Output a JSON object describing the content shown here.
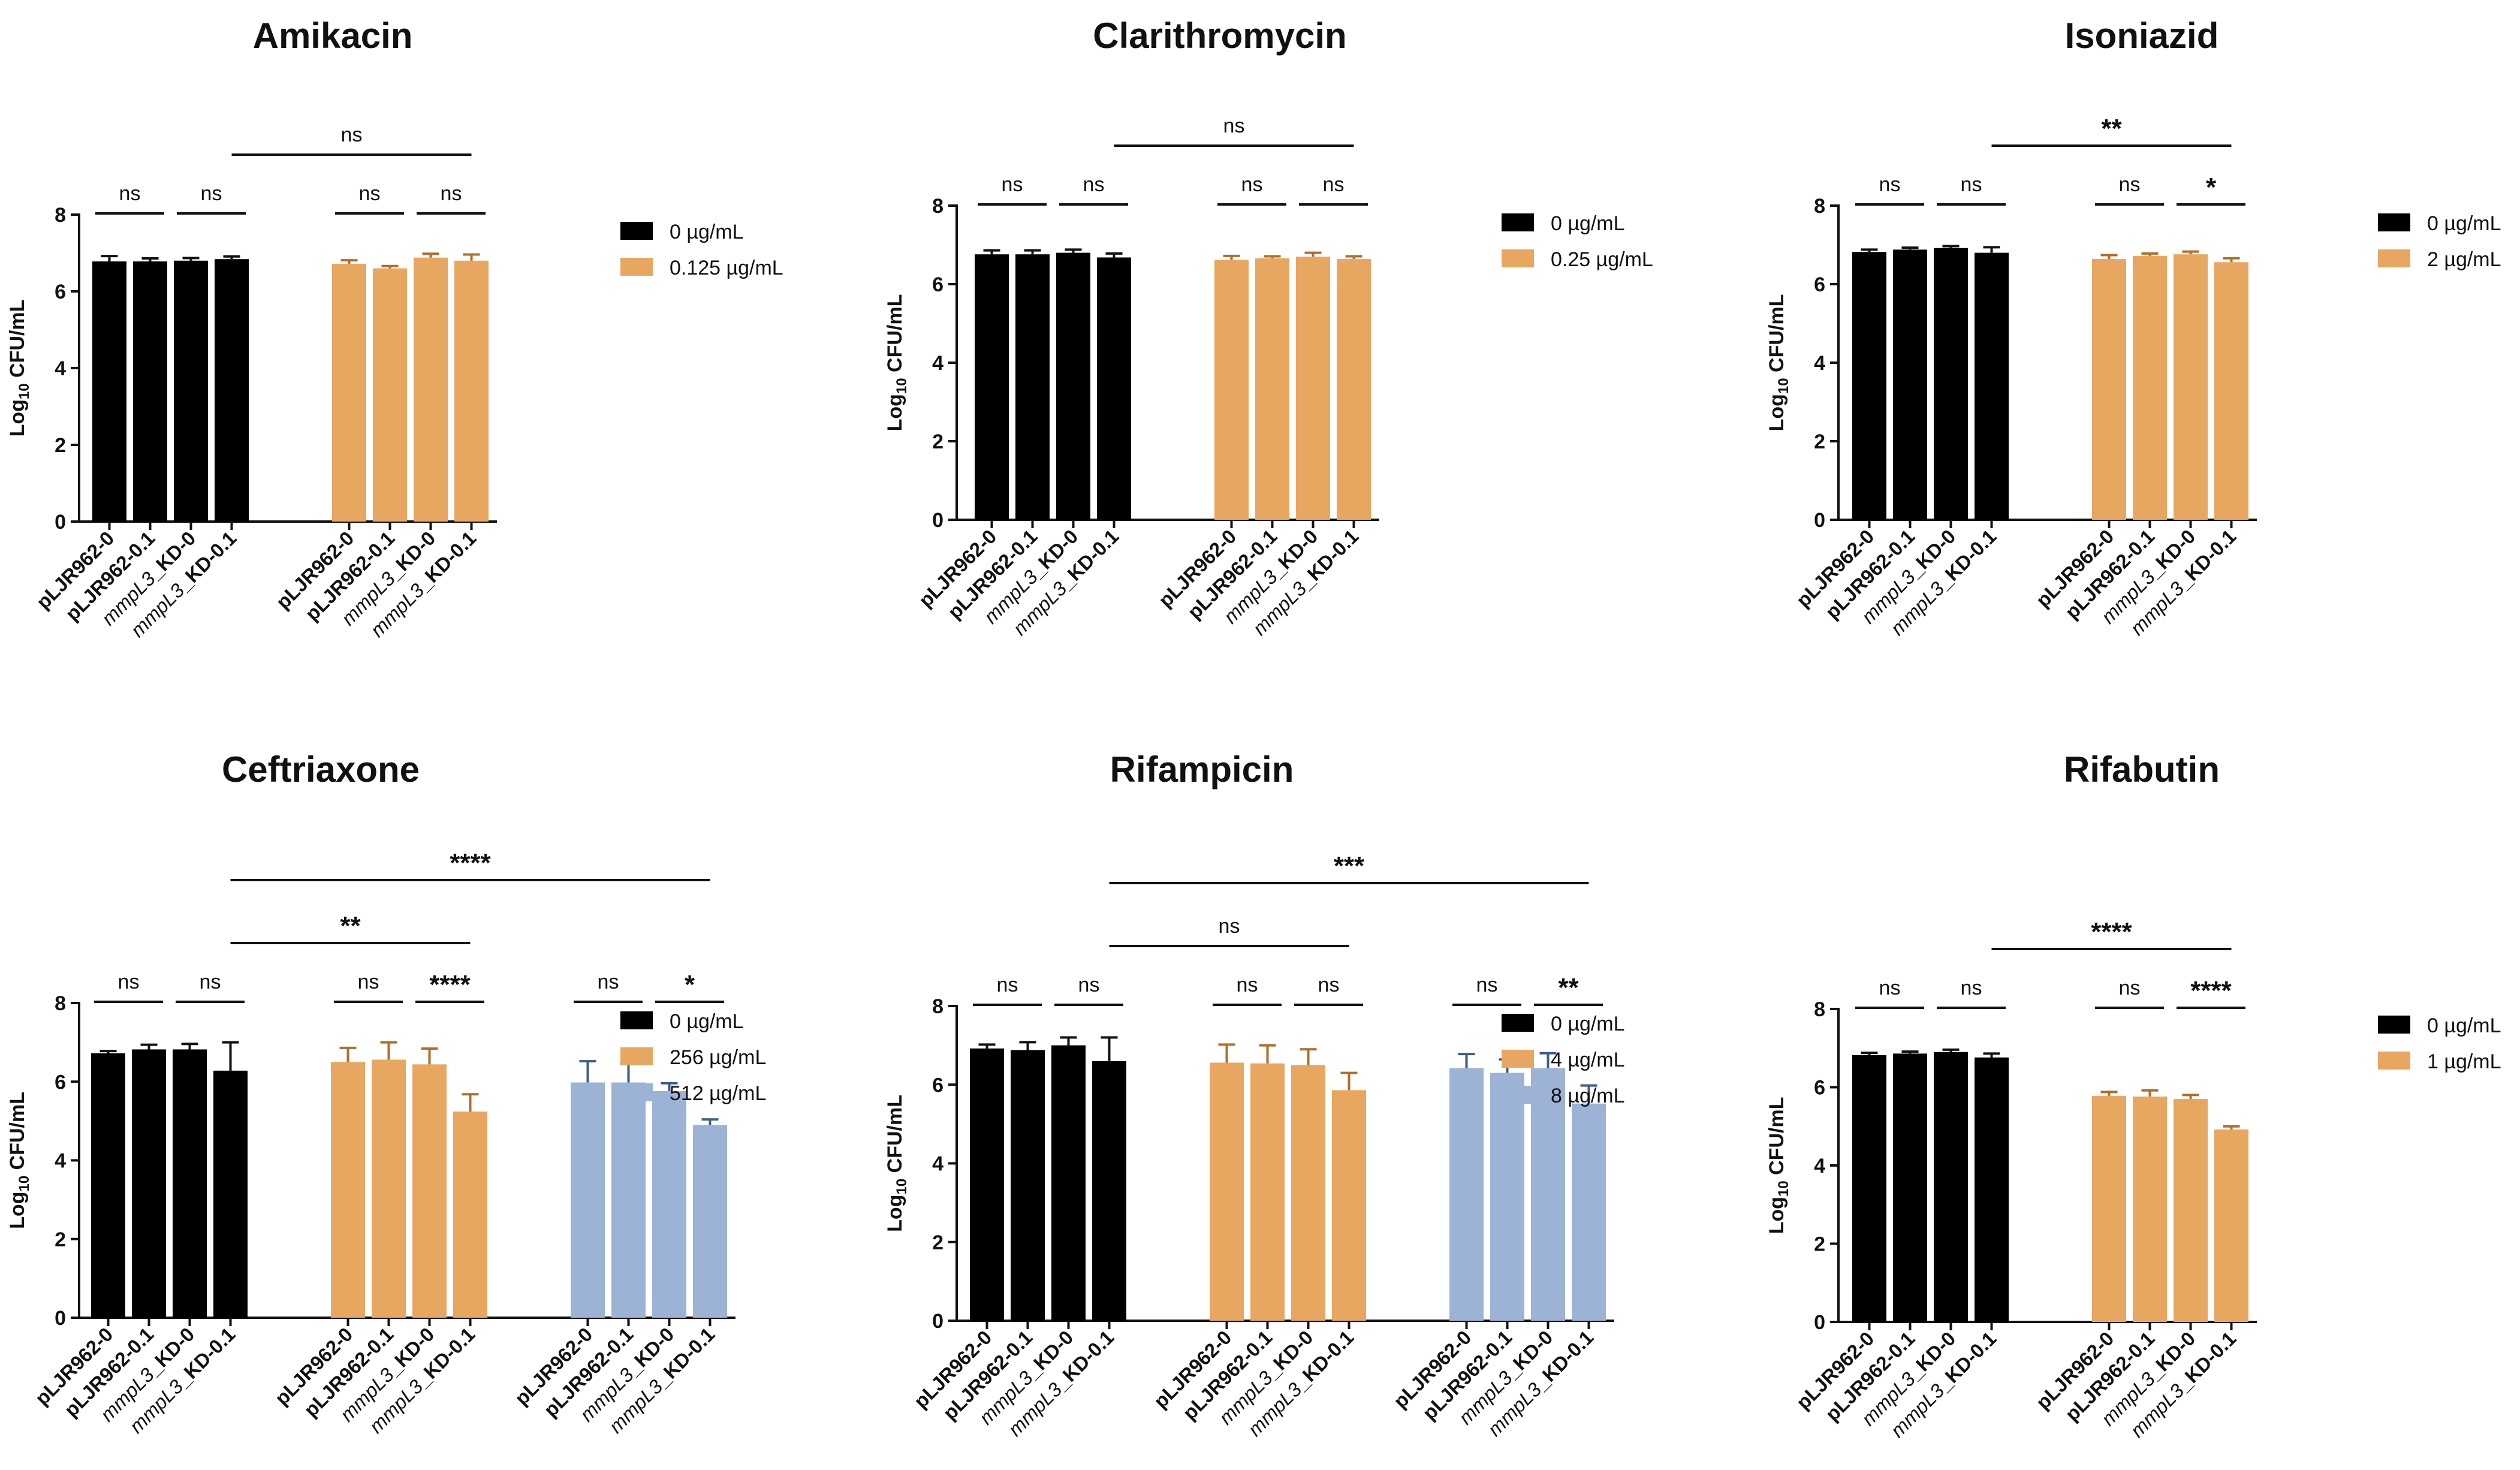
{
  "colors": {
    "black": "#000000",
    "orange": "#E8A760",
    "blue": "#9CB3D5"
  },
  "chart_data": [
    {
      "type": "bar",
      "title": "Amikacin",
      "ylabel_main": "Log",
      "ylabel_sub": "10",
      "ylabel_rest": " CFU/mL",
      "ylim": [
        0,
        8
      ],
      "yticks": [
        0,
        2,
        4,
        6,
        8
      ],
      "categories": [
        "pLJR962-0",
        "pLJR962-0.1",
        "mmpL3_KD-0",
        "mmpL3_KD-0.1"
      ],
      "series": [
        {
          "name": "0 µg/mL",
          "color": "#000000",
          "values": [
            6.78,
            6.78,
            6.8,
            6.84
          ],
          "errors": [
            0.14,
            0.08,
            0.07,
            0.07
          ]
        },
        {
          "name": "0.125 µg/mL",
          "color": "#E8A760",
          "values": [
            6.72,
            6.6,
            6.88,
            6.8
          ],
          "errors": [
            0.09,
            0.06,
            0.1,
            0.16
          ]
        }
      ],
      "annotations": [
        {
          "label": "ns",
          "from": [
            0,
            0
          ],
          "to": [
            0,
            1
          ],
          "level": 0
        },
        {
          "label": "ns",
          "from": [
            0,
            2
          ],
          "to": [
            0,
            3
          ],
          "level": 0
        },
        {
          "label": "ns",
          "from": [
            1,
            0
          ],
          "to": [
            1,
            1
          ],
          "level": 0
        },
        {
          "label": "ns",
          "from": [
            1,
            2
          ],
          "to": [
            1,
            3
          ],
          "level": 0
        },
        {
          "label": "ns",
          "from": [
            0,
            3
          ],
          "to": [
            1,
            3
          ],
          "level": 1
        }
      ]
    },
    {
      "type": "bar",
      "title": "Clarithromycin",
      "ylabel_main": "Log",
      "ylabel_sub": "10",
      "ylabel_rest": " CFU/mL",
      "ylim": [
        0,
        8
      ],
      "yticks": [
        0,
        2,
        4,
        6,
        8
      ],
      "categories": [
        "pLJR962-0",
        "pLJR962-0.1",
        "mmpL3_KD-0",
        "mmpL3_KD-0.1"
      ],
      "series": [
        {
          "name": "0 µg/mL",
          "color": "#000000",
          "values": [
            6.76,
            6.76,
            6.8,
            6.68
          ],
          "errors": [
            0.1,
            0.1,
            0.08,
            0.1
          ]
        },
        {
          "name": "0.25 µg/mL",
          "color": "#E8A760",
          "values": [
            6.62,
            6.66,
            6.7,
            6.64
          ],
          "errors": [
            0.1,
            0.05,
            0.1,
            0.07
          ]
        }
      ],
      "annotations": [
        {
          "label": "ns",
          "from": [
            0,
            0
          ],
          "to": [
            0,
            1
          ],
          "level": 0
        },
        {
          "label": "ns",
          "from": [
            0,
            2
          ],
          "to": [
            0,
            3
          ],
          "level": 0
        },
        {
          "label": "ns",
          "from": [
            1,
            0
          ],
          "to": [
            1,
            1
          ],
          "level": 0
        },
        {
          "label": "ns",
          "from": [
            1,
            2
          ],
          "to": [
            1,
            3
          ],
          "level": 0
        },
        {
          "label": "ns",
          "from": [
            0,
            3
          ],
          "to": [
            1,
            3
          ],
          "level": 1
        }
      ]
    },
    {
      "type": "bar",
      "title": "Isoniazid",
      "ylabel_main": "Log",
      "ylabel_sub": "10",
      "ylabel_rest": " CFU/mL",
      "ylim": [
        0,
        8
      ],
      "yticks": [
        0,
        2,
        4,
        6,
        8
      ],
      "categories": [
        "pLJR962-0",
        "pLJR962-0.1",
        "mmpL3_KD-0",
        "mmpL3_KD-0.1"
      ],
      "series": [
        {
          "name": "0 µg/mL",
          "color": "#000000",
          "values": [
            6.82,
            6.88,
            6.92,
            6.8
          ],
          "errors": [
            0.06,
            0.05,
            0.05,
            0.14
          ]
        },
        {
          "name": "2 µg/mL",
          "color": "#E8A760",
          "values": [
            6.64,
            6.72,
            6.76,
            6.56
          ],
          "errors": [
            0.1,
            0.06,
            0.07,
            0.1
          ]
        }
      ],
      "annotations": [
        {
          "label": "ns",
          "from": [
            0,
            0
          ],
          "to": [
            0,
            1
          ],
          "level": 0
        },
        {
          "label": "ns",
          "from": [
            0,
            2
          ],
          "to": [
            0,
            3
          ],
          "level": 0
        },
        {
          "label": "ns",
          "from": [
            1,
            0
          ],
          "to": [
            1,
            1
          ],
          "level": 0
        },
        {
          "label": "*",
          "from": [
            1,
            2
          ],
          "to": [
            1,
            3
          ],
          "level": 0
        },
        {
          "label": "**",
          "from": [
            0,
            3
          ],
          "to": [
            1,
            3
          ],
          "level": 1
        }
      ]
    },
    {
      "type": "bar",
      "title": "Ceftriaxone",
      "ylabel_main": "Log",
      "ylabel_sub": "10",
      "ylabel_rest": " CFU/mL",
      "ylim": [
        0,
        8
      ],
      "yticks": [
        0,
        2,
        4,
        6,
        8
      ],
      "categories": [
        "pLJR962-0",
        "pLJR962-0.1",
        "mmpL3_KD-0",
        "mmpL3_KD-0.1"
      ],
      "series": [
        {
          "name": "0 µg/mL",
          "color": "#000000",
          "values": [
            6.72,
            6.82,
            6.82,
            6.28
          ],
          "errors": [
            0.06,
            0.12,
            0.14,
            0.72
          ]
        },
        {
          "name": "256 µg/mL",
          "color": "#E8A760",
          "values": [
            6.5,
            6.56,
            6.44,
            5.24
          ],
          "errors": [
            0.36,
            0.44,
            0.4,
            0.44
          ]
        },
        {
          "name": "512 µg/mL",
          "color": "#9CB3D5",
          "values": [
            5.98,
            5.98,
            5.76,
            4.9
          ],
          "errors": [
            0.54,
            0.48,
            0.2,
            0.14
          ]
        }
      ],
      "annotations": [
        {
          "label": "ns",
          "from": [
            0,
            0
          ],
          "to": [
            0,
            1
          ],
          "level": 0
        },
        {
          "label": "ns",
          "from": [
            0,
            2
          ],
          "to": [
            0,
            3
          ],
          "level": 0
        },
        {
          "label": "ns",
          "from": [
            1,
            0
          ],
          "to": [
            1,
            1
          ],
          "level": 0
        },
        {
          "label": "****",
          "from": [
            1,
            2
          ],
          "to": [
            1,
            3
          ],
          "level": 0
        },
        {
          "label": "ns",
          "from": [
            2,
            0
          ],
          "to": [
            2,
            1
          ],
          "level": 0
        },
        {
          "label": "*",
          "from": [
            2,
            2
          ],
          "to": [
            2,
            3
          ],
          "level": 0
        },
        {
          "label": "**",
          "from": [
            0,
            3
          ],
          "to": [
            1,
            3
          ],
          "level": 1
        },
        {
          "label": "****",
          "from": [
            0,
            3
          ],
          "to": [
            2,
            3
          ],
          "level": 2
        }
      ]
    },
    {
      "type": "bar",
      "title": "Rifampicin",
      "ylabel_main": "Log",
      "ylabel_sub": "10",
      "ylabel_rest": " CFU/mL",
      "ylim": [
        0,
        8
      ],
      "yticks": [
        0,
        2,
        4,
        6,
        8
      ],
      "categories": [
        "pLJR962-0",
        "pLJR962-0.1",
        "mmpL3_KD-0",
        "mmpL3_KD-0.1"
      ],
      "series": [
        {
          "name": "0 µg/mL",
          "color": "#000000",
          "values": [
            6.92,
            6.88,
            7.0,
            6.6
          ],
          "errors": [
            0.1,
            0.2,
            0.2,
            0.6
          ]
        },
        {
          "name": "4 µg/mL",
          "color": "#E8A760",
          "values": [
            6.56,
            6.54,
            6.5,
            5.86
          ],
          "errors": [
            0.46,
            0.46,
            0.4,
            0.44
          ]
        },
        {
          "name": "8 µg/mL",
          "color": "#9CB3D5",
          "values": [
            6.42,
            6.3,
            6.42,
            5.52
          ],
          "errors": [
            0.36,
            0.34,
            0.38,
            0.46
          ]
        }
      ],
      "annotations": [
        {
          "label": "ns",
          "from": [
            0,
            0
          ],
          "to": [
            0,
            1
          ],
          "level": 0
        },
        {
          "label": "ns",
          "from": [
            0,
            2
          ],
          "to": [
            0,
            3
          ],
          "level": 0
        },
        {
          "label": "ns",
          "from": [
            1,
            0
          ],
          "to": [
            1,
            1
          ],
          "level": 0
        },
        {
          "label": "ns",
          "from": [
            1,
            2
          ],
          "to": [
            1,
            3
          ],
          "level": 0
        },
        {
          "label": "ns",
          "from": [
            2,
            0
          ],
          "to": [
            2,
            1
          ],
          "level": 0
        },
        {
          "label": "**",
          "from": [
            2,
            2
          ],
          "to": [
            2,
            3
          ],
          "level": 0
        },
        {
          "label": "ns",
          "from": [
            0,
            3
          ],
          "to": [
            1,
            3
          ],
          "level": 1
        },
        {
          "label": "***",
          "from": [
            0,
            3
          ],
          "to": [
            2,
            3
          ],
          "level": 2
        }
      ]
    },
    {
      "type": "bar",
      "title": "Rifabutin",
      "ylabel_main": "Log",
      "ylabel_sub": "10",
      "ylabel_rest": " CFU/mL",
      "ylim": [
        0,
        8
      ],
      "yticks": [
        0,
        2,
        4,
        6,
        8
      ],
      "categories": [
        "pLJR962-0",
        "pLJR962-0.1",
        "mmpL3_KD-0",
        "mmpL3_KD-0.1"
      ],
      "series": [
        {
          "name": "0 µg/mL",
          "color": "#000000",
          "values": [
            6.82,
            6.86,
            6.9,
            6.76
          ],
          "errors": [
            0.06,
            0.05,
            0.06,
            0.1
          ]
        },
        {
          "name": "1 µg/mL",
          "color": "#E8A760",
          "values": [
            5.78,
            5.76,
            5.7,
            4.92
          ],
          "errors": [
            0.1,
            0.16,
            0.1,
            0.08
          ]
        }
      ],
      "annotations": [
        {
          "label": "ns",
          "from": [
            0,
            0
          ],
          "to": [
            0,
            1
          ],
          "level": 0
        },
        {
          "label": "ns",
          "from": [
            0,
            2
          ],
          "to": [
            0,
            3
          ],
          "level": 0
        },
        {
          "label": "ns",
          "from": [
            1,
            0
          ],
          "to": [
            1,
            1
          ],
          "level": 0
        },
        {
          "label": "****",
          "from": [
            1,
            2
          ],
          "to": [
            1,
            3
          ],
          "level": 0
        },
        {
          "label": "****",
          "from": [
            0,
            3
          ],
          "to": [
            1,
            3
          ],
          "level": 1
        }
      ]
    }
  ]
}
